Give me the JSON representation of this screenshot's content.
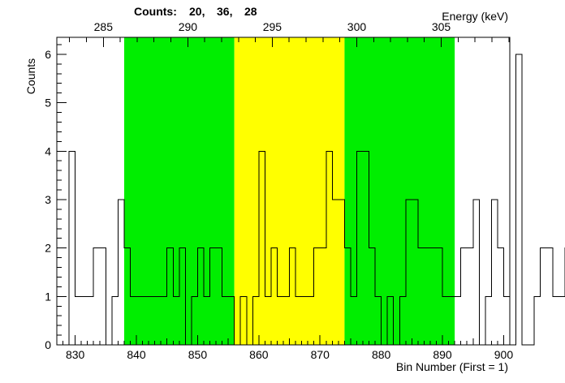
{
  "chart_data": {
    "type": "histogram",
    "header": {
      "label": "Counts:",
      "values": [
        "20,",
        "36,",
        "28"
      ]
    },
    "xlabel": "Bin Number (First = 1)",
    "ylabel": "Counts",
    "top_axis_label": "Energy (keV)",
    "xlim": [
      827,
      901
    ],
    "ylim": [
      0,
      6.35
    ],
    "x_ticks": [
      830,
      840,
      850,
      860,
      870,
      880,
      890,
      900
    ],
    "y_ticks": [
      0,
      1,
      2,
      3,
      4,
      5,
      6
    ],
    "top_ticks": [
      {
        "label": "285",
        "bin": 834.6
      },
      {
        "label": "290",
        "bin": 848.4
      },
      {
        "label": "295",
        "bin": 862.2
      },
      {
        "label": "300",
        "bin": 876.0
      },
      {
        "label": "305",
        "bin": 889.8
      }
    ],
    "regions": [
      {
        "name": "left-background",
        "from": 838,
        "to": 856,
        "color": "#00ee00"
      },
      {
        "name": "peak",
        "from": 856,
        "to": 874,
        "color": "#ffff00"
      },
      {
        "name": "right-background",
        "from": 874,
        "to": 892,
        "color": "#00ee00"
      }
    ],
    "bins_start": 827,
    "bin_width": 1,
    "counts": [
      0,
      0,
      4,
      1,
      1,
      1,
      2,
      2,
      0,
      1,
      3,
      2,
      1,
      1,
      1,
      1,
      1,
      1,
      2,
      1,
      2,
      0,
      1,
      2,
      1,
      2,
      2,
      1,
      1,
      0,
      1,
      0,
      1,
      4,
      1,
      2,
      1,
      1,
      2,
      1,
      1,
      1,
      2,
      2,
      4,
      3,
      3,
      2,
      1,
      4,
      4,
      2,
      1,
      0,
      1,
      0,
      1,
      3,
      3,
      2,
      2,
      2,
      2,
      1,
      1,
      1,
      2,
      2,
      3,
      0,
      1,
      3,
      2,
      1,
      0,
      6,
      0,
      0,
      1,
      2,
      2,
      1,
      1,
      2,
      1
    ]
  }
}
